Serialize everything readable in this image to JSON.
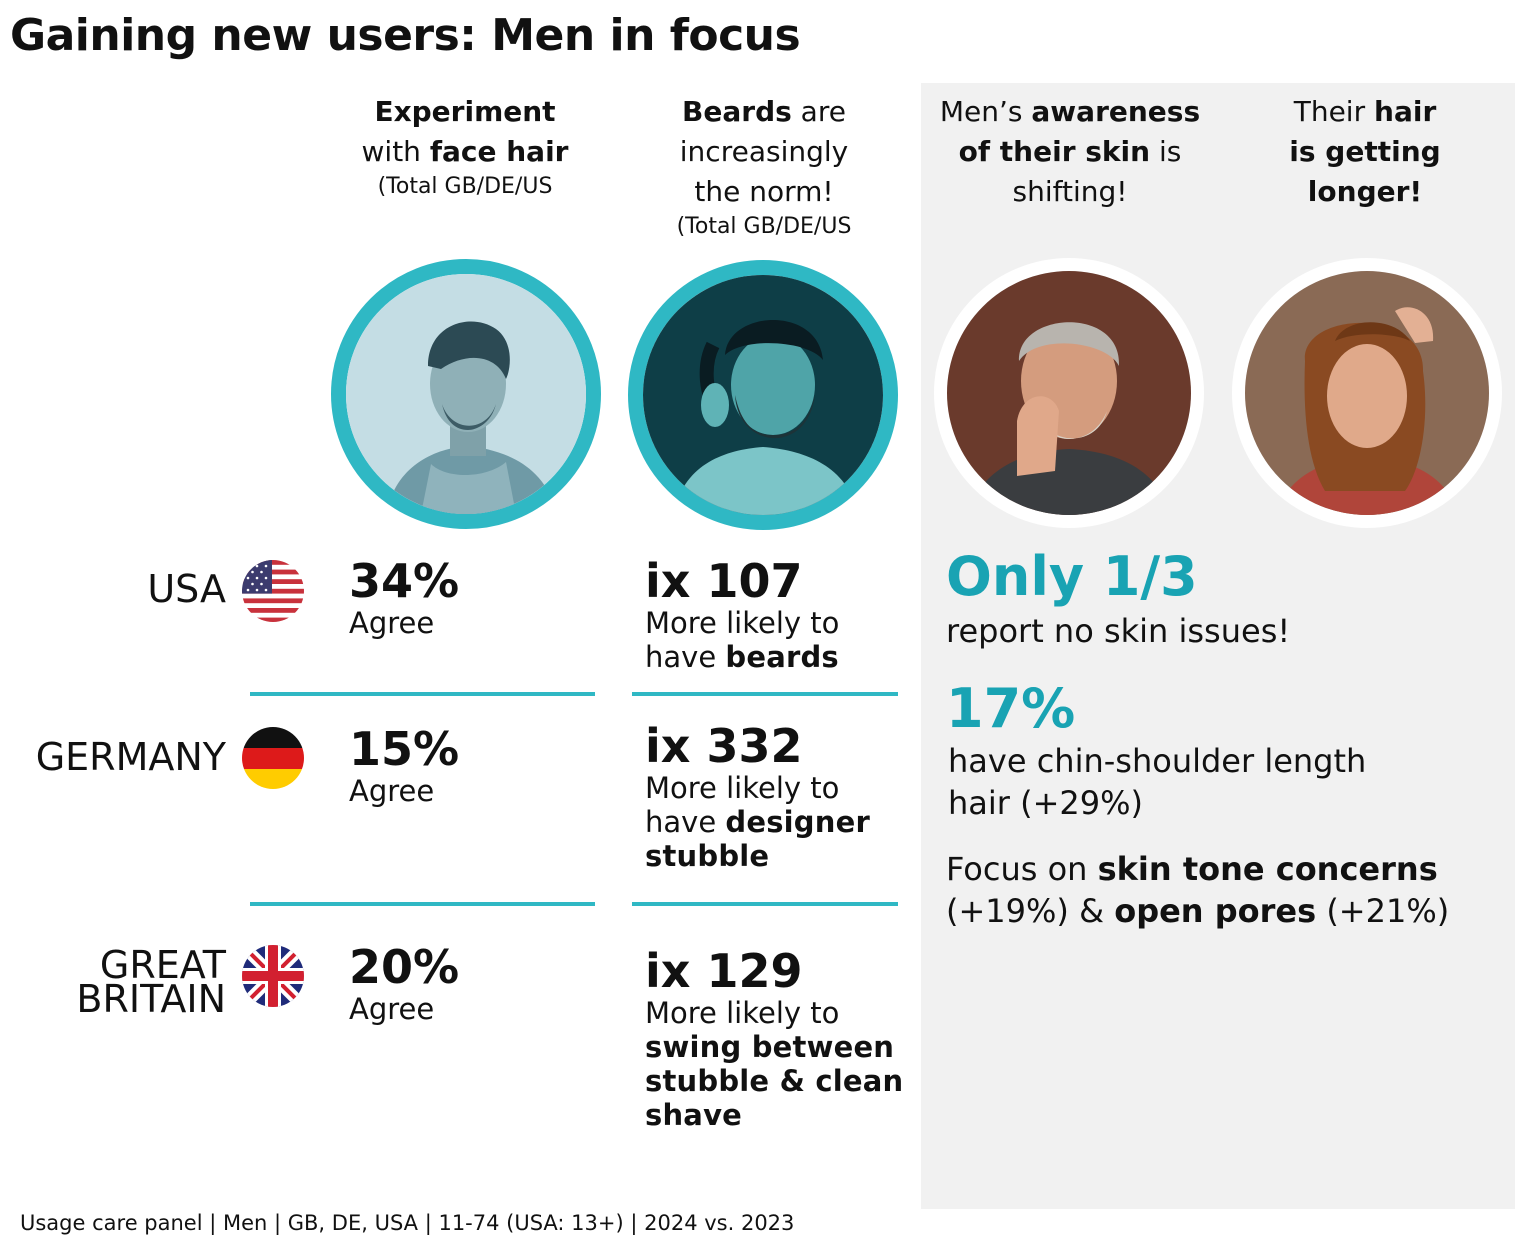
{
  "title": "Gaining new users: Men in focus",
  "columns": {
    "face_hair": {
      "line1_bold": "Experiment",
      "line2_pre": "with ",
      "line2_bold": "face hair",
      "sub": "(Total GB/DE/US"
    },
    "beards": {
      "line1_bold": "Beards",
      "line1_post": " are",
      "line2": "increasingly",
      "line3": "the norm!",
      "sub": "(Total GB/DE/US"
    },
    "skin": {
      "line1_pre": "Men’s ",
      "line1_bold": "awareness",
      "line2_bold": "of their skin",
      "line2_post": " is",
      "line3": "shifting!"
    },
    "hair": {
      "line1_pre": "Their ",
      "line1_bold": "hair",
      "line2_bold": "is getting",
      "line3_bold": "longer!"
    }
  },
  "countries": [
    {
      "name": "USA",
      "agree_value": "34%",
      "agree_label": "Agree",
      "index": "ix 107",
      "likely": "More likely to",
      "have_pre": "have ",
      "have_bold": "beards"
    },
    {
      "name": "GERMANY",
      "agree_value": "15%",
      "agree_label": "Agree",
      "index": "ix 332",
      "likely": "More likely to",
      "have_pre": "have ",
      "have_bold": "designer",
      "have_bold2": "stubble"
    },
    {
      "name_line1": "GREAT",
      "name_line2": "BRITAIN",
      "agree_value": "20%",
      "agree_label": "Agree",
      "index": "ix 129",
      "likely": "More likely to",
      "bold1": "swing between",
      "bold2": "stubble & clean",
      "bold3": "shave"
    }
  ],
  "right": {
    "stat1": "Only 1/3",
    "stat1_text": "report no skin issues!",
    "stat2": "17%",
    "stat2_text1": "have chin-shoulder length",
    "stat2_text2": "hair (+29%)",
    "focus_pre": "Focus on ",
    "focus_bold": "skin tone concerns",
    "focus_line2_a": "(+19%) & ",
    "focus_line2_bold": "open pores",
    "focus_line2_b": " (+21%)"
  },
  "footer": "Usage care panel | Men | GB, DE, USA | 11-74 (USA: 13+) | 2024 vs. 2023",
  "colors": {
    "teal": "#2fb8c4",
    "teal_text": "#19a3b3",
    "panel": "#f1f1f1"
  }
}
